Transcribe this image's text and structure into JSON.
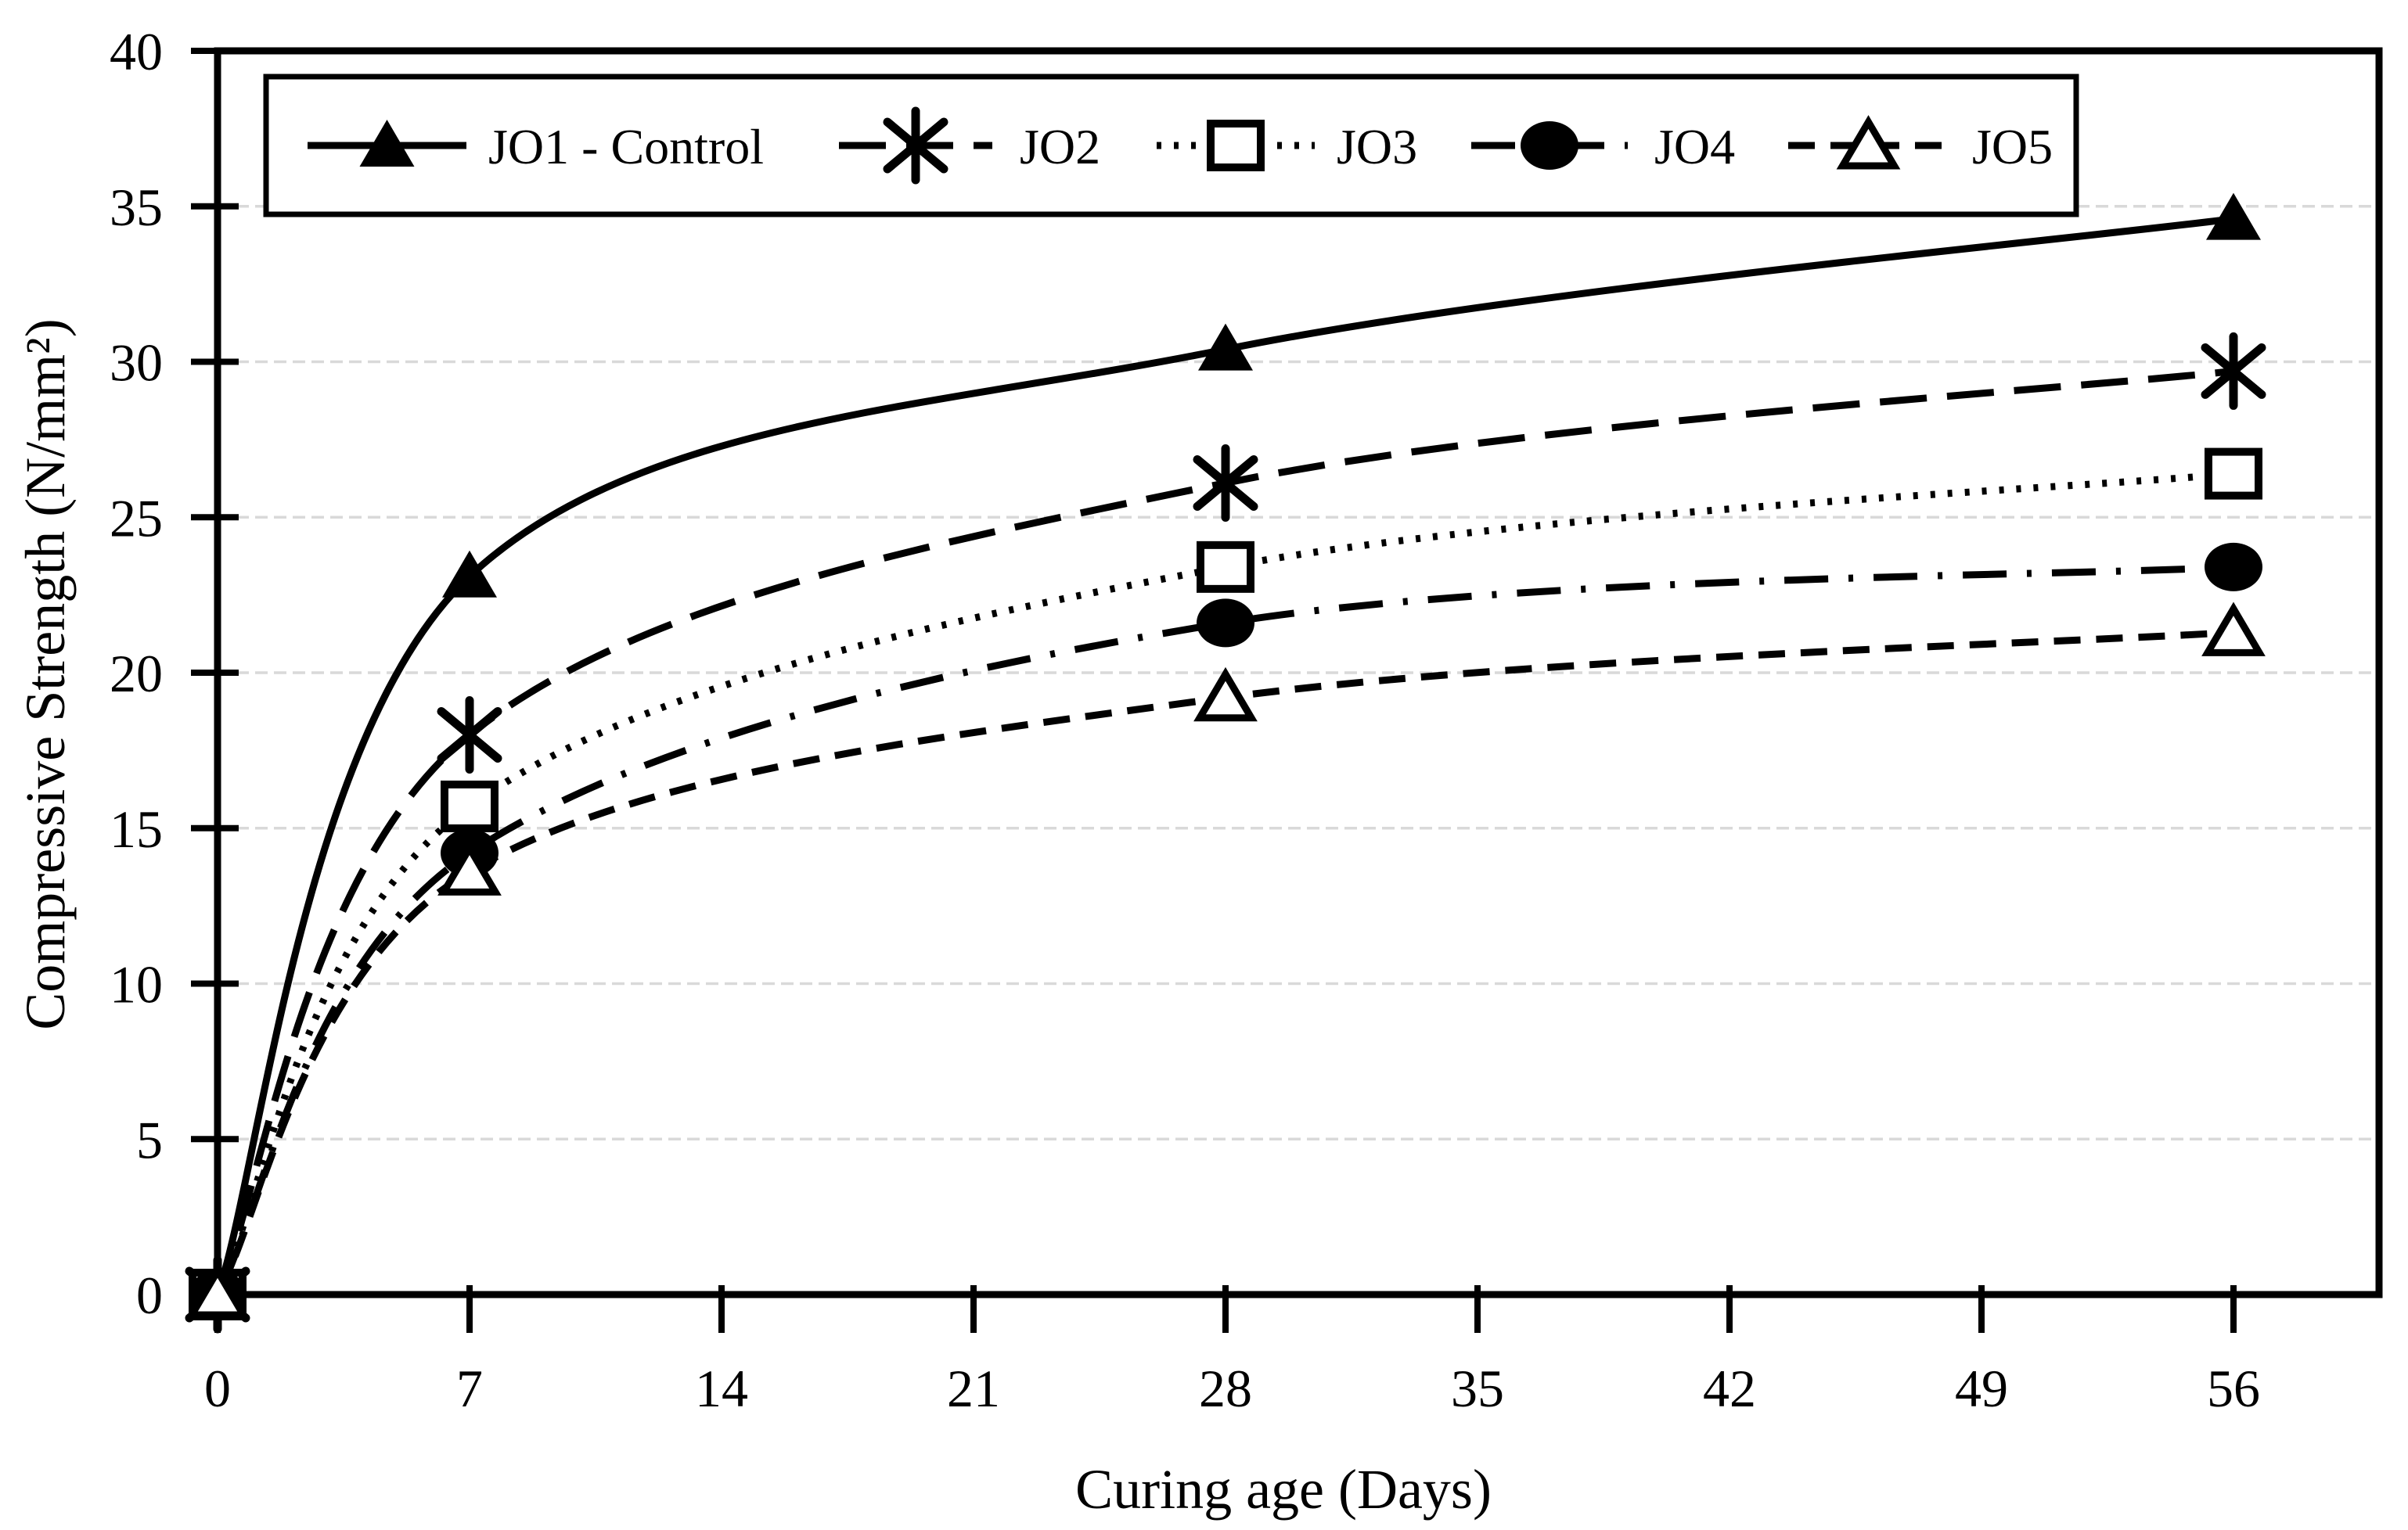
{
  "chart_data": {
    "type": "line",
    "title": "",
    "xlabel": "Curing age (Days)",
    "ylabel": "Compressive Strength (N/mm²)",
    "x": [
      0,
      7,
      28,
      56
    ],
    "xticks": [
      0,
      7,
      14,
      21,
      28,
      35,
      42,
      49,
      56
    ],
    "yticks": [
      0,
      5,
      10,
      15,
      20,
      25,
      30,
      35,
      40
    ],
    "xlim": [
      0,
      60
    ],
    "ylim": [
      0,
      40
    ],
    "grid": "horizontal-light-dashed",
    "legend_position": "top-inside-box",
    "series": [
      {
        "name": "JO1 - Control",
        "marker": "filled-triangle",
        "line": "solid",
        "values": [
          0,
          23.1,
          30.4,
          34.6
        ]
      },
      {
        "name": "JO2",
        "marker": "asterisk",
        "line": "long-dash",
        "values": [
          0,
          18.0,
          26.1,
          29.7
        ]
      },
      {
        "name": "JO3",
        "marker": "open-square",
        "line": "dotted",
        "values": [
          0,
          15.7,
          23.4,
          26.4
        ]
      },
      {
        "name": "JO4",
        "marker": "filled-circle",
        "line": "dash-dot",
        "values": [
          0,
          14.2,
          21.6,
          23.4
        ]
      },
      {
        "name": "JO5",
        "marker": "open-triangle",
        "line": "dash",
        "values": [
          0,
          13.6,
          19.2,
          21.3
        ]
      }
    ],
    "colors": {
      "series": "#000000",
      "grid": "#d9d9d9",
      "axis": "#000000",
      "background": "#ffffff"
    }
  }
}
